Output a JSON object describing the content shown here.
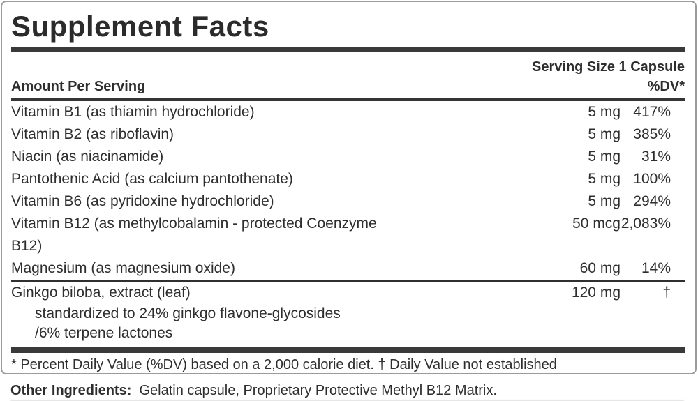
{
  "colors": {
    "text": "#2e2e2e",
    "rule_dark": "#3a3a3a",
    "border": "#9b9b9b",
    "background": "#ffffff"
  },
  "label": {
    "title": "Supplement Facts",
    "serving_size": "Serving Size 1 Capsule",
    "columns": {
      "amount_header": "Amount Per Serving",
      "dv_header": "%DV*"
    },
    "rows": [
      {
        "name": "Vitamin B1 (as thiamin hydrochloride)",
        "amount": "5 mg",
        "dv": "417%"
      },
      {
        "name": "Vitamin B2 (as riboflavin)",
        "amount": "5 mg",
        "dv": "385%"
      },
      {
        "name": "Niacin (as niacinamide)",
        "amount": "5 mg",
        "dv": "31%"
      },
      {
        "name": "Pantothenic Acid (as calcium pantothenate)",
        "amount": "5 mg",
        "dv": "100%"
      },
      {
        "name": "Vitamin B6 (as pyridoxine hydrochloride)",
        "amount": "5 mg",
        "dv": "294%"
      },
      {
        "name_lines": [
          "Vitamin B12 (as methylcobalamin - protected Coenzyme",
          "B12)"
        ],
        "amount": "50 mcg",
        "dv": "2,083%"
      },
      {
        "name": "Magnesium (as magnesium oxide)",
        "amount": "60 mg",
        "dv": "14%"
      },
      {
        "name": "Ginkgo biloba, extract (leaf)",
        "amount": "120 mg",
        "dv": "†",
        "sub_lines": [
          "standardized to 24% ginkgo flavone-glycosides",
          "/6% terpene lactones"
        ]
      }
    ],
    "footnote": "* Percent Daily Value (%DV) based on a 2,000 calorie diet. † Daily Value not established",
    "other_ingredients": {
      "label": "Other Ingredients:",
      "text": "Gelatin capsule, Proprietary Protective Methyl B12 Matrix."
    }
  }
}
